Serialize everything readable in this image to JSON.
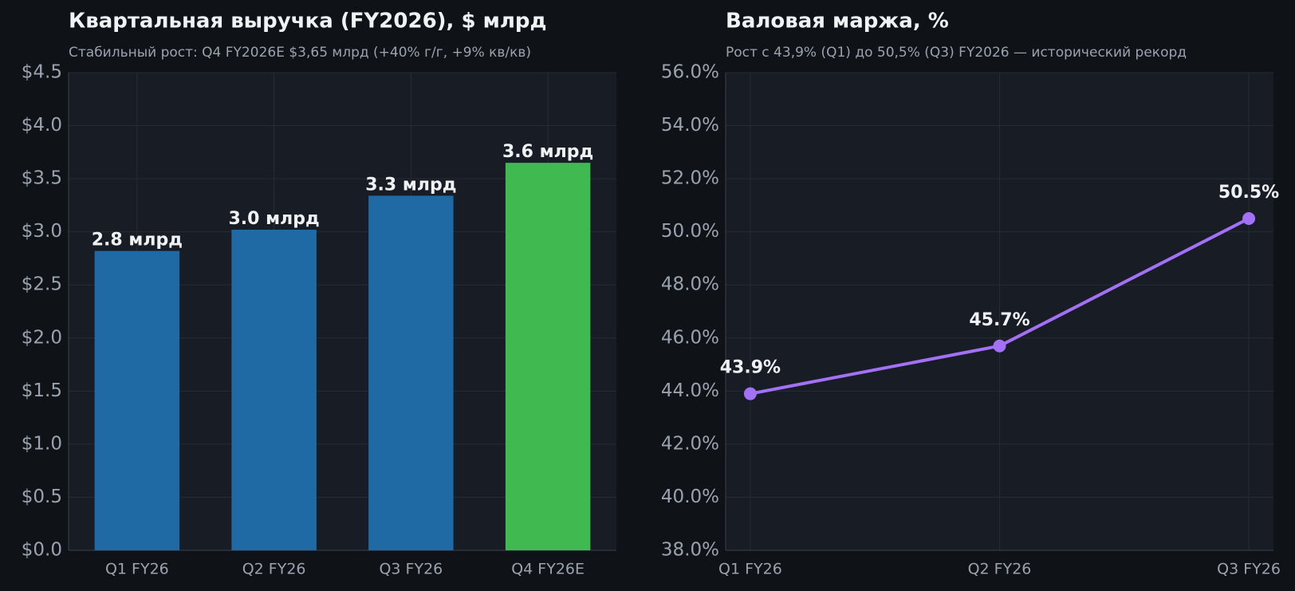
{
  "chart_data": [
    {
      "type": "bar",
      "title": "Квартальная выручка (FY2026), $ млрд",
      "subtitle": "Стабильный рост: Q4 FY2026E $3,65 млрд (+40% г/г, +9% кв/кв)",
      "categories": [
        "Q1 FY26",
        "Q2 FY26",
        "Q3 FY26",
        "Q4 FY26E"
      ],
      "values": [
        2.82,
        3.02,
        3.34,
        3.65
      ],
      "value_labels": [
        "2.8 млрд",
        "3.0 млрд",
        "3.3 млрд",
        "3.6 млрд"
      ],
      "colors": [
        "#1f6aa5",
        "#1f6aa5",
        "#1f6aa5",
        "#3fb950"
      ],
      "ylim": [
        0,
        4.5
      ],
      "yticks": [
        {
          "value": 0,
          "label": "$0.0"
        },
        {
          "value": 0.5,
          "label": "$0.5"
        },
        {
          "value": 1,
          "label": "$1.0"
        },
        {
          "value": 1.5,
          "label": "$1.5"
        },
        {
          "value": 2,
          "label": "$2.0"
        },
        {
          "value": 2.5,
          "label": "$2.5"
        },
        {
          "value": 3,
          "label": "$3.0"
        },
        {
          "value": 3.5,
          "label": "$3.5"
        },
        {
          "value": 4,
          "label": "$4.0"
        },
        {
          "value": 4.5,
          "label": "$4.5"
        }
      ],
      "grid": true
    },
    {
      "type": "line",
      "title": "Валовая маржа, %",
      "subtitle": "Рост с 43,9% (Q1) до 50,5% (Q3) FY2026 — исторический рекорд",
      "categories": [
        "Q1 FY26",
        "Q2 FY26",
        "Q3 FY26"
      ],
      "values": [
        43.9,
        45.7,
        50.5
      ],
      "value_labels": [
        "43.9%",
        "45.7%",
        "50.5%"
      ],
      "color": "#a371f7",
      "ylim": [
        38,
        56
      ],
      "yticks": [
        {
          "value": 38,
          "label": "38.0%"
        },
        {
          "value": 40,
          "label": "40.0%"
        },
        {
          "value": 42,
          "label": "42.0%"
        },
        {
          "value": 44,
          "label": "44.0%"
        },
        {
          "value": 46,
          "label": "46.0%"
        },
        {
          "value": 48,
          "label": "48.0%"
        },
        {
          "value": 50,
          "label": "50.0%"
        },
        {
          "value": 52,
          "label": "52.0%"
        },
        {
          "value": 54,
          "label": "54.0%"
        },
        {
          "value": 56,
          "label": "56.0%"
        }
      ],
      "grid": true
    }
  ]
}
